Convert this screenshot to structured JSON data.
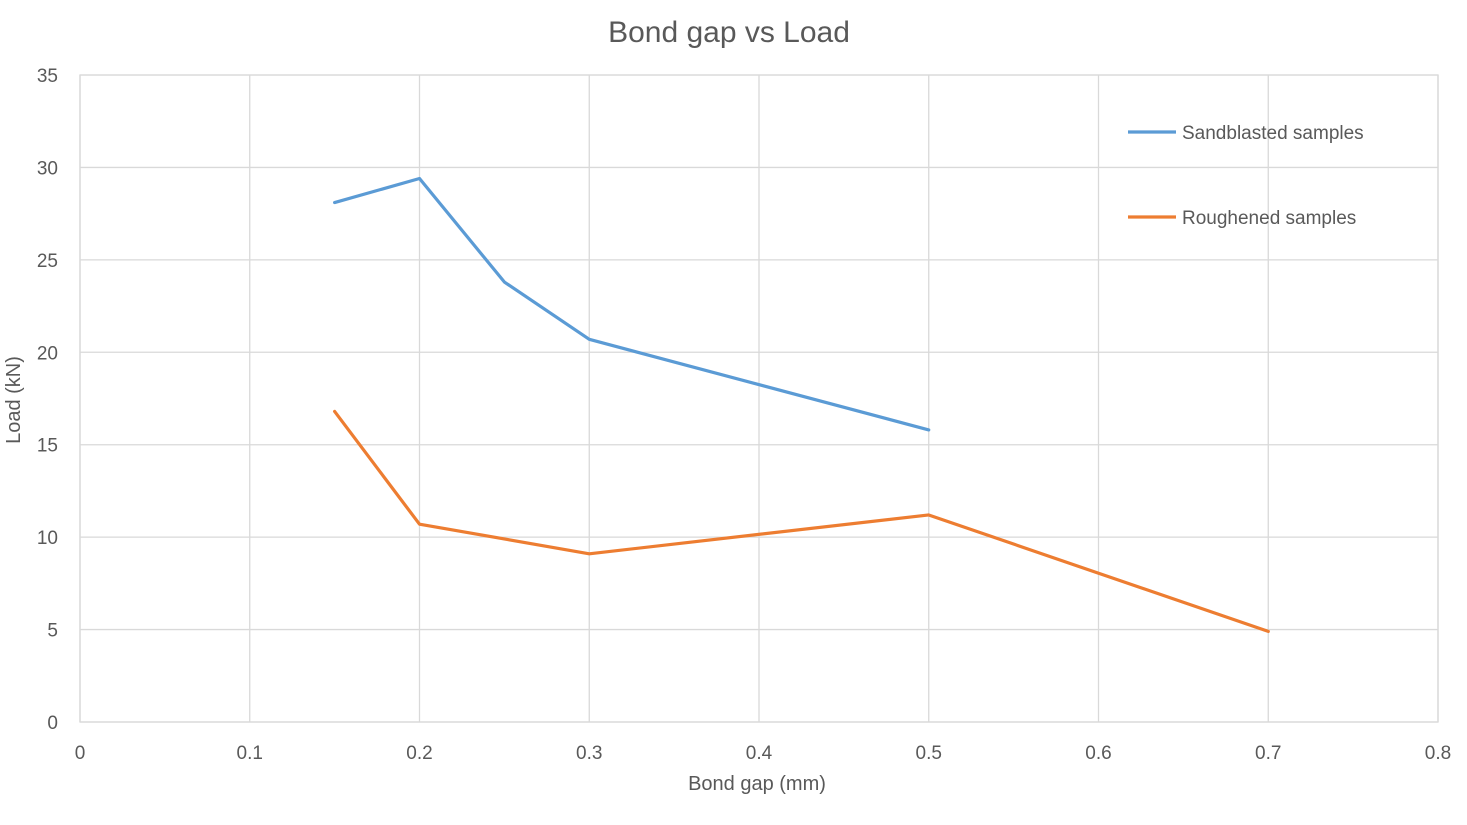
{
  "chart_data": {
    "type": "line",
    "title": "Bond gap vs Load",
    "xlabel": "Bond gap (mm)",
    "ylabel": "Load (kN)",
    "xlim": [
      0,
      0.8
    ],
    "ylim": [
      0,
      35
    ],
    "x_ticks": [
      "0",
      "0.1",
      "0.2",
      "0.3",
      "0.4",
      "0.5",
      "0.6",
      "0.7",
      "0.8"
    ],
    "y_ticks": [
      "0",
      "5",
      "10",
      "15",
      "20",
      "25",
      "30",
      "35"
    ],
    "grid": true,
    "legend_position": "top-right",
    "series": [
      {
        "name": "Sandblasted samples",
        "color": "#5b9bd5",
        "x": [
          0.15,
          0.2,
          0.25,
          0.3,
          0.5
        ],
        "y": [
          28.1,
          29.4,
          23.8,
          20.7,
          15.8
        ]
      },
      {
        "name": "Roughened samples",
        "color": "#ed7d31",
        "x": [
          0.15,
          0.2,
          0.3,
          0.5,
          0.7
        ],
        "y": [
          16.8,
          10.7,
          9.1,
          11.2,
          4.9
        ]
      }
    ]
  }
}
